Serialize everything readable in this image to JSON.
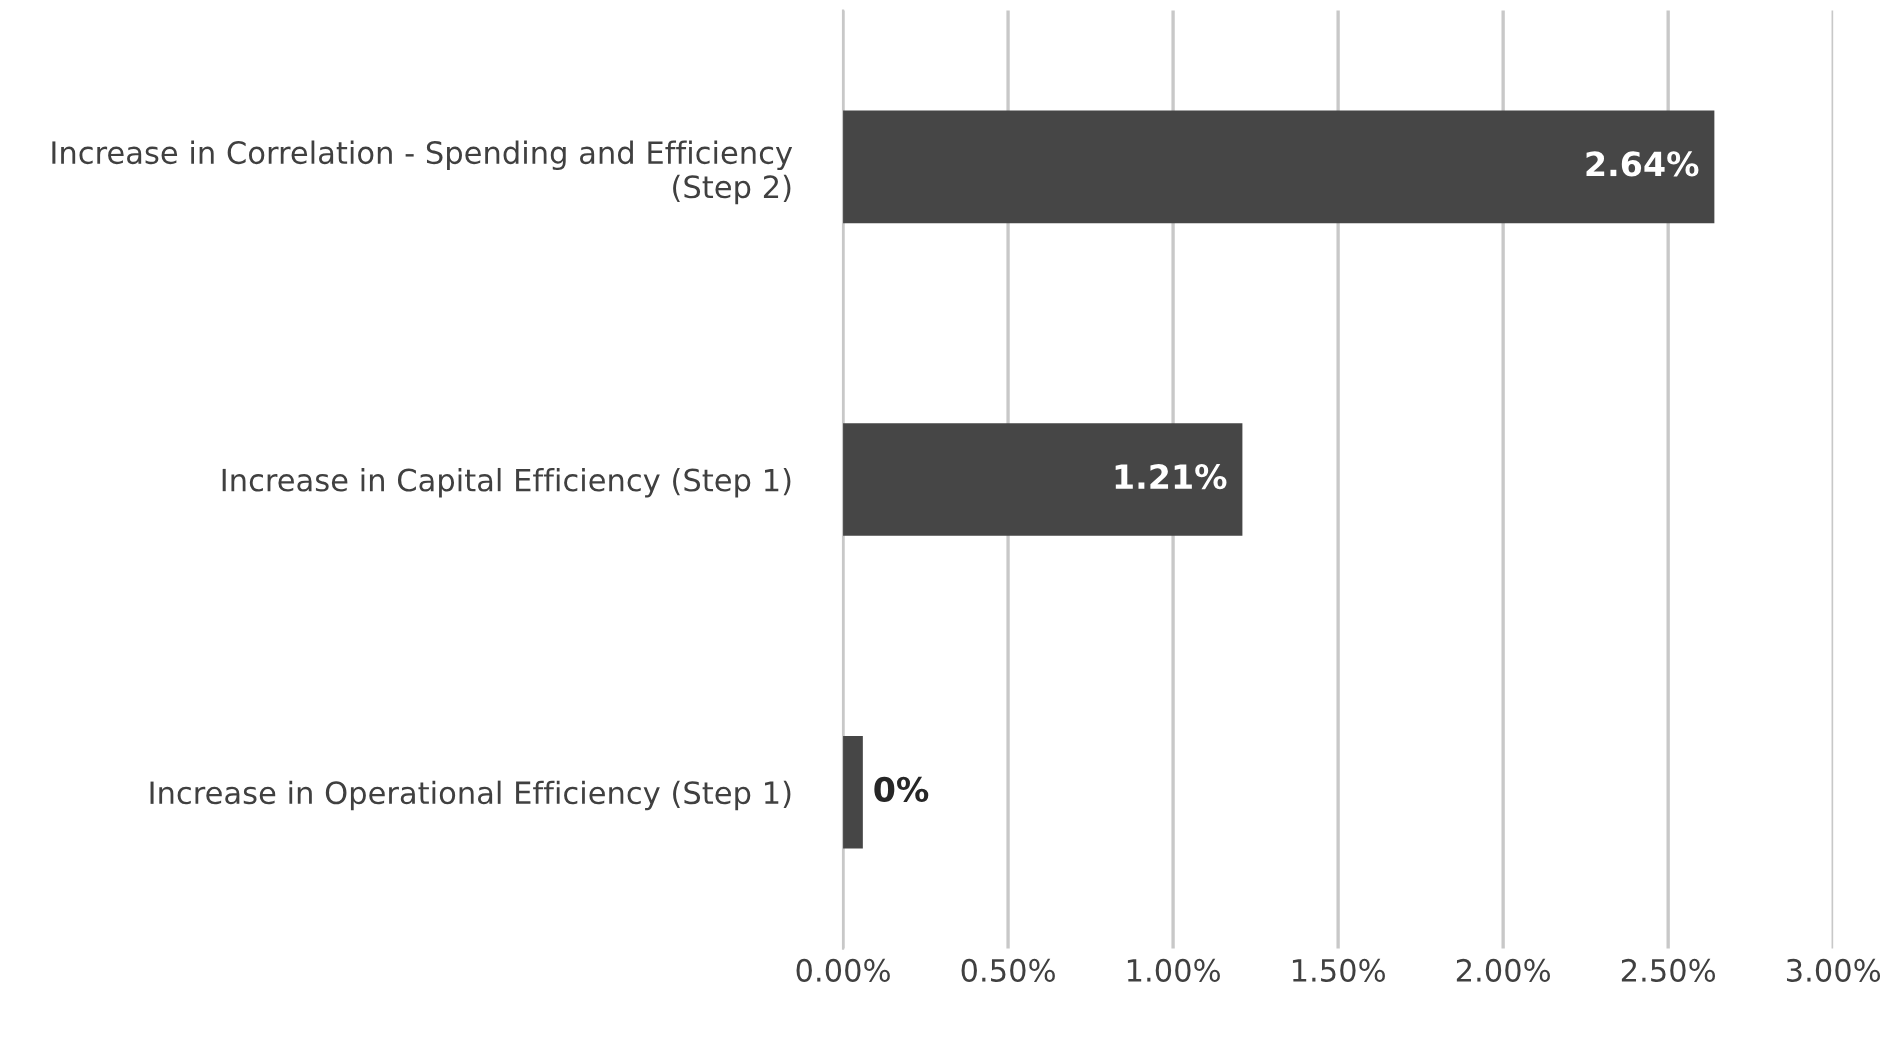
{
  "chart_data": {
    "type": "bar",
    "orientation": "horizontal",
    "categories": [
      "Increase in Correlation - Spending and Efficiency (Step 2)",
      "Increase in Capital Efficiency (Step 1)",
      "Increase in Operational Efficiency (Step 1)"
    ],
    "values": [
      2.64,
      1.21,
      0.06
    ],
    "value_labels": [
      "2.64%",
      "1.21%",
      "0%"
    ],
    "color": "#464646",
    "xlim": [
      0,
      3
    ],
    "xticks": [
      {
        "value": 0,
        "label": "0.00%"
      },
      {
        "value": 0.5,
        "label": "0.50%"
      },
      {
        "value": 1,
        "label": "1.00%"
      },
      {
        "value": 1.5,
        "label": "1.50%"
      },
      {
        "value": 2,
        "label": "2.00%"
      },
      {
        "value": 2.5,
        "label": "2.50%"
      },
      {
        "value": 3,
        "label": "3.00%"
      }
    ],
    "grid": "x",
    "legend": false
  }
}
